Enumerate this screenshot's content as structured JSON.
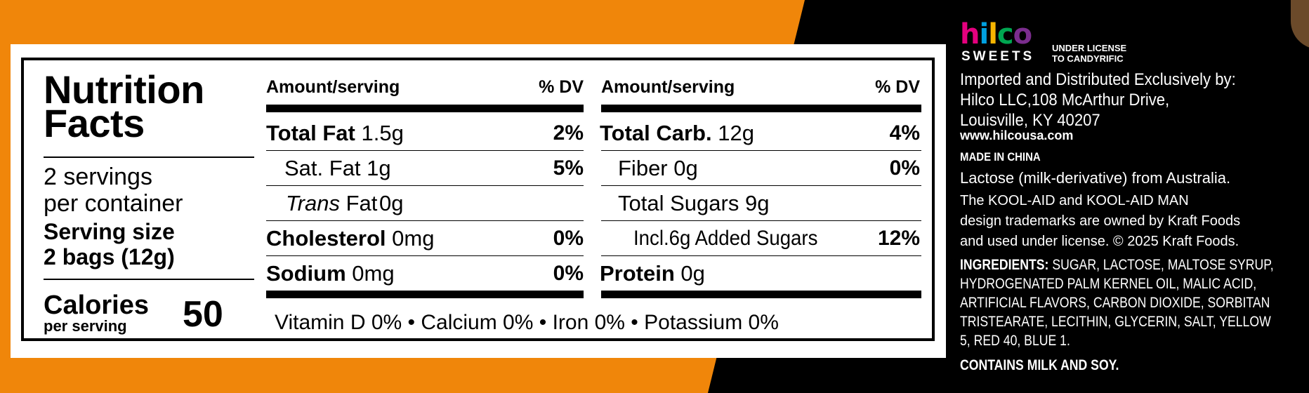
{
  "nutrition": {
    "title_line1": "Nutrition",
    "title_line2": "Facts",
    "servings_line1": "2 servings",
    "servings_line2": "per container",
    "serving_size_label": "Serving size",
    "serving_size_value": "2 bags (12g)",
    "calories_label": "Calories",
    "calories_sub": "per serving",
    "calories_value": "50",
    "col_header_amount": "Amount/serving",
    "col_header_dv": "% DV",
    "left_rows": [
      {
        "name": "Total Fat",
        "amount": "1.5g",
        "dv": "2%"
      },
      {
        "name": "Sat. Fat",
        "amount": "1g",
        "dv": "5%"
      },
      {
        "name": "Trans",
        "name_rest": "Fat",
        "amount": "0g",
        "dv": ""
      },
      {
        "name": "Cholesterol",
        "amount": "0mg",
        "dv": "0%"
      },
      {
        "name": "Sodium",
        "amount": "0mg",
        "dv": "0%"
      }
    ],
    "right_rows": [
      {
        "name": "Total Carb.",
        "amount": "12g",
        "dv": "4%"
      },
      {
        "name": "Fiber",
        "amount": "0g",
        "dv": "0%"
      },
      {
        "name": "Total Sugars",
        "amount": "9g",
        "dv": ""
      },
      {
        "name": "Incl.",
        "amount": "6g Added Sugars",
        "dv": "12%"
      },
      {
        "name": "Protein",
        "amount": "0g",
        "dv": ""
      }
    ],
    "vitamins": "Vitamin D 0% • Calcium 0% • Iron 0% • Potassium 0%"
  },
  "brand": {
    "logo_text": "hilco",
    "logo_sub": "SWEETS",
    "license_line1": "UNDER LICENSE",
    "license_line2": "TO CANDYRIFIC",
    "importer_lines": [
      "Imported and Distributed Exclusively by:",
      "Hilco LLC,108 McArthur Drive,",
      "Louisville, KY 40207"
    ],
    "website": "www.hilcousa.com",
    "made_in": "MADE IN CHINA",
    "lactose": "Lactose (milk-derivative) from Australia.",
    "trademark_lines": [
      "The KOOL-AID and KOOL-AID MAN",
      "design trademarks are owned by Kraft Foods",
      "and used under license. © 2025 Kraft Foods."
    ],
    "ingredients_label": "INGREDIENTS:",
    "ingredients_lines": [
      " SUGAR, LACTOSE, MALTOSE SYRUP,",
      "HYDROGENATED PALM KERNEL OIL, MALIC ACID,",
      "ARTIFICIAL FLAVORS, CARBON DIOXIDE, SORBITAN",
      "TRISTEARATE, LECITHIN, GLYCERIN, SALT, YELLOW",
      "5, RED 40, BLUE 1."
    ],
    "contains": "CONTAINS MILK AND SOY.",
    "logo_colors": [
      "#E5007E",
      "#00A0E0",
      "#F7B500",
      "#00A651",
      "#7B2D8E"
    ]
  }
}
